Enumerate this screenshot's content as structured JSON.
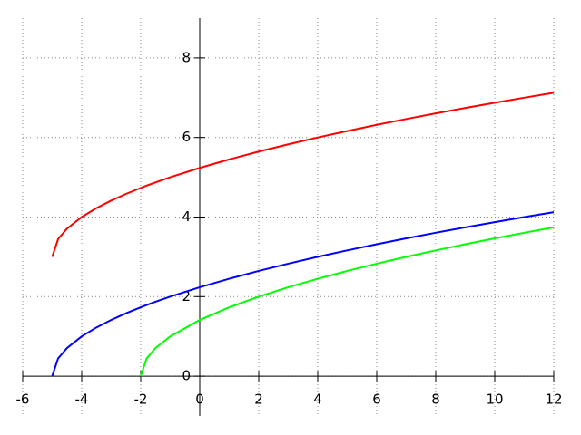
{
  "chart_data": {
    "type": "line",
    "x": [
      -5,
      -4.8,
      -4.5,
      -4,
      -3.5,
      -3,
      -2.5,
      -2,
      -1.8,
      -1.5,
      -1,
      0,
      1,
      2,
      3,
      4,
      5,
      6,
      7,
      8,
      9,
      10,
      11,
      12
    ],
    "series": [
      {
        "color": "#ff0000",
        "values": [
          3,
          3.447,
          3.707,
          4,
          4.225,
          4.414,
          4.581,
          4.732,
          4.789,
          4.871,
          5,
          5.236,
          5.449,
          5.646,
          5.828,
          6,
          6.162,
          6.317,
          6.464,
          6.606,
          6.742,
          6.873,
          7,
          7.123
        ]
      },
      {
        "color": "#0000ff",
        "values": [
          0,
          0.447,
          0.707,
          1,
          1.225,
          1.414,
          1.581,
          1.732,
          1.789,
          1.871,
          2,
          2.236,
          2.449,
          2.646,
          2.828,
          3,
          3.162,
          3.317,
          3.464,
          3.606,
          3.742,
          3.873,
          4,
          4.123
        ]
      },
      {
        "color": "#00ff00",
        "values": [
          null,
          null,
          null,
          null,
          null,
          null,
          null,
          0,
          0.447,
          0.707,
          1,
          1.414,
          1.732,
          2,
          2.236,
          2.449,
          2.646,
          2.828,
          3,
          3.162,
          3.317,
          3.464,
          3.606,
          3.742
        ]
      }
    ],
    "xlim": [
      -6,
      12
    ],
    "ylim": [
      -1,
      9
    ],
    "xticks": [
      -6,
      -4,
      -2,
      0,
      2,
      4,
      6,
      8,
      10,
      12
    ],
    "yticks": [
      0,
      2,
      4,
      6,
      8
    ],
    "grid": true
  }
}
